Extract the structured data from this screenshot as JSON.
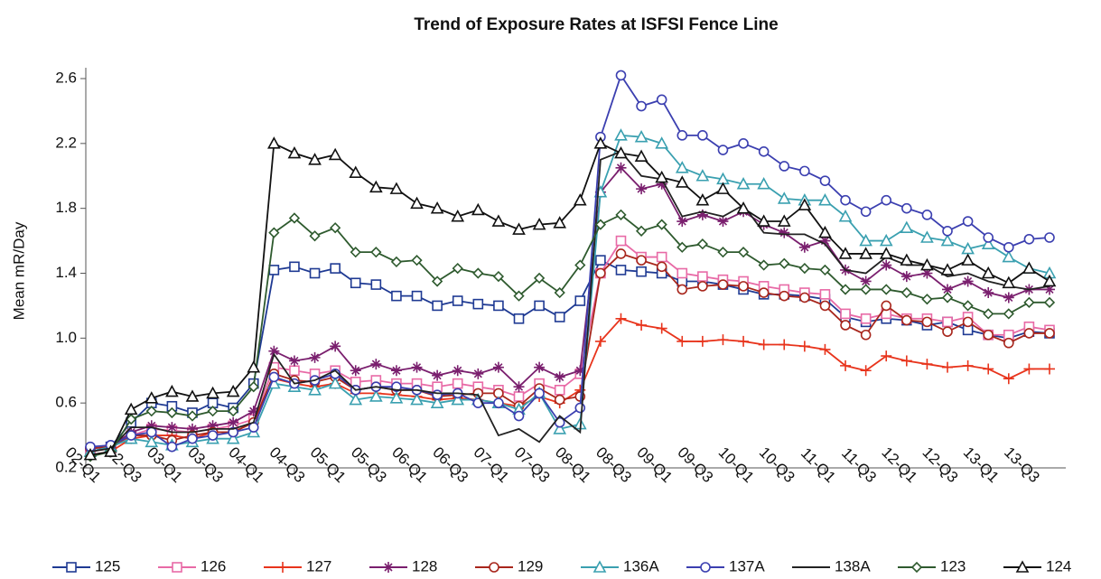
{
  "chart_data": {
    "type": "line",
    "title": "Trend of Exposure Rates at ISFSI  Fence Line",
    "y_label": "Mean mR/Day",
    "categories": [
      "02-Q1",
      null,
      "02-Q3",
      null,
      "03-Q1",
      null,
      "03-Q3",
      null,
      "04-Q1",
      null,
      "04-Q3",
      null,
      "05-Q1",
      null,
      "05-Q3",
      null,
      "06-Q1",
      null,
      "06-Q3",
      null,
      "07-Q1",
      null,
      "07-Q3",
      null,
      "08-Q1",
      null,
      "08-Q3",
      null,
      "09-Q1",
      null,
      "09-Q3",
      null,
      "10-Q1",
      null,
      "10-Q3",
      null,
      "11-Q1",
      null,
      "11-Q3",
      null,
      "12-Q1",
      null,
      "12-Q3",
      null,
      "13-Q1",
      null,
      "13-Q3",
      null
    ],
    "ylim": [
      0.2,
      2.6
    ],
    "yticks": [
      0.2,
      0.6,
      {
        "value": 1,
        "label": "1.0"
      },
      1.4,
      1.8,
      2.2,
      2.6
    ],
    "grid": false,
    "legend": "bottom",
    "series": [
      {
        "name": "125",
        "color": "#1f3a93",
        "marker": "square",
        "values": [
          0.3,
          0.33,
          0.48,
          0.6,
          0.58,
          0.54,
          0.6,
          0.57,
          0.72,
          1.42,
          1.44,
          1.4,
          1.43,
          1.34,
          1.33,
          1.26,
          1.26,
          1.2,
          1.23,
          1.21,
          1.2,
          1.12,
          1.2,
          1.13,
          1.23,
          1.48,
          1.42,
          1.41,
          1.4,
          1.35,
          1.35,
          1.33,
          1.3,
          1.27,
          1.27,
          1.26,
          1.24,
          1.13,
          1.1,
          1.12,
          1.11,
          1.08,
          1.1,
          1.05,
          1.02,
          1.0,
          1.04,
          1.03
        ]
      },
      {
        "name": "126",
        "color": "#e86aa6",
        "marker": "square",
        "values": [
          0.3,
          0.32,
          0.4,
          0.44,
          0.43,
          0.42,
          0.44,
          0.46,
          0.5,
          0.82,
          0.8,
          0.78,
          0.8,
          0.73,
          0.74,
          0.72,
          0.72,
          0.7,
          0.72,
          0.7,
          0.68,
          0.64,
          0.72,
          0.68,
          0.78,
          1.4,
          1.6,
          1.5,
          1.5,
          1.4,
          1.38,
          1.36,
          1.35,
          1.32,
          1.3,
          1.28,
          1.27,
          1.15,
          1.12,
          1.15,
          1.12,
          1.12,
          1.1,
          1.13,
          1.02,
          1.02,
          1.07,
          1.05
        ]
      },
      {
        "name": "127",
        "color": "#e8341c",
        "marker": "plus",
        "values": [
          0.28,
          0.3,
          0.38,
          0.4,
          0.4,
          0.38,
          0.42,
          0.42,
          0.48,
          0.75,
          0.72,
          0.7,
          0.72,
          0.66,
          0.66,
          0.65,
          0.64,
          0.62,
          0.63,
          0.62,
          0.6,
          0.58,
          0.64,
          0.6,
          0.68,
          0.98,
          1.12,
          1.08,
          1.06,
          0.98,
          0.98,
          0.99,
          0.98,
          0.96,
          0.96,
          0.95,
          0.93,
          0.83,
          0.8,
          0.89,
          0.86,
          0.84,
          0.82,
          0.83,
          0.81,
          0.75,
          0.81,
          0.81
        ]
      },
      {
        "name": "128",
        "color": "#7a1f6e",
        "marker": "star",
        "values": [
          0.32,
          0.33,
          0.42,
          0.46,
          0.45,
          0.44,
          0.46,
          0.48,
          0.55,
          0.92,
          0.86,
          0.88,
          0.95,
          0.8,
          0.84,
          0.8,
          0.82,
          0.77,
          0.8,
          0.78,
          0.82,
          0.7,
          0.82,
          0.76,
          0.8,
          1.9,
          2.05,
          1.92,
          1.95,
          1.72,
          1.76,
          1.72,
          1.78,
          1.7,
          1.65,
          1.56,
          1.6,
          1.42,
          1.35,
          1.45,
          1.38,
          1.4,
          1.3,
          1.35,
          1.28,
          1.25,
          1.3,
          1.3
        ]
      },
      {
        "name": "129",
        "color": "#a8261c",
        "marker": "circle",
        "values": [
          0.32,
          0.33,
          0.4,
          0.4,
          0.37,
          0.4,
          0.42,
          0.42,
          0.48,
          0.78,
          0.74,
          0.73,
          0.76,
          0.68,
          0.7,
          0.68,
          0.68,
          0.64,
          0.65,
          0.66,
          0.66,
          0.58,
          0.69,
          0.62,
          0.64,
          1.4,
          1.52,
          1.48,
          1.44,
          1.3,
          1.32,
          1.33,
          1.32,
          1.28,
          1.26,
          1.25,
          1.2,
          1.08,
          1.02,
          1.2,
          1.11,
          1.1,
          1.04,
          1.1,
          1.02,
          0.97,
          1.03,
          1.03
        ]
      },
      {
        "name": "136A",
        "color": "#3aa0b0",
        "marker": "triangle",
        "values": [
          0.3,
          0.33,
          0.38,
          0.36,
          0.34,
          0.36,
          0.38,
          0.38,
          0.42,
          0.72,
          0.7,
          0.68,
          0.72,
          0.62,
          0.64,
          0.63,
          0.62,
          0.6,
          0.62,
          0.62,
          0.6,
          0.56,
          0.66,
          0.44,
          0.47,
          1.9,
          2.25,
          2.24,
          2.2,
          2.05,
          2.0,
          1.98,
          1.95,
          1.95,
          1.86,
          1.85,
          1.85,
          1.75,
          1.6,
          1.6,
          1.68,
          1.62,
          1.6,
          1.55,
          1.58,
          1.5,
          1.43,
          1.4
        ]
      },
      {
        "name": "137A",
        "color": "#3b3fb0",
        "marker": "circle",
        "values": [
          0.33,
          0.34,
          0.4,
          0.42,
          0.33,
          0.38,
          0.4,
          0.42,
          0.45,
          0.76,
          0.72,
          0.74,
          0.78,
          0.68,
          0.7,
          0.7,
          0.68,
          0.65,
          0.66,
          0.6,
          0.6,
          0.52,
          0.66,
          0.48,
          0.57,
          2.24,
          2.62,
          2.43,
          2.47,
          2.25,
          2.25,
          2.16,
          2.2,
          2.15,
          2.06,
          2.03,
          1.97,
          1.85,
          1.78,
          1.85,
          1.8,
          1.76,
          1.66,
          1.72,
          1.62,
          1.56,
          1.61,
          1.62
        ]
      },
      {
        "name": "138A",
        "color": "#222222",
        "marker": "none",
        "values": [
          0.3,
          0.32,
          0.45,
          0.45,
          0.42,
          0.42,
          0.44,
          0.44,
          0.48,
          0.9,
          0.72,
          0.74,
          0.8,
          0.68,
          0.7,
          0.68,
          0.68,
          0.66,
          0.66,
          0.65,
          0.4,
          0.44,
          0.36,
          0.52,
          0.42,
          2.1,
          2.15,
          2.0,
          1.98,
          1.75,
          1.78,
          1.75,
          1.82,
          1.65,
          1.64,
          1.64,
          1.58,
          1.42,
          1.4,
          1.5,
          1.45,
          1.45,
          1.38,
          1.4,
          1.35,
          1.32,
          1.3,
          1.32
        ]
      },
      {
        "name": "123",
        "color": "#2e5a2e",
        "marker": "diamond",
        "values": [
          0.27,
          0.3,
          0.5,
          0.55,
          0.54,
          0.52,
          0.55,
          0.55,
          0.7,
          1.65,
          1.74,
          1.63,
          1.68,
          1.53,
          1.53,
          1.47,
          1.48,
          1.35,
          1.43,
          1.4,
          1.38,
          1.26,
          1.37,
          1.28,
          1.45,
          1.7,
          1.76,
          1.66,
          1.7,
          1.56,
          1.58,
          1.53,
          1.53,
          1.45,
          1.46,
          1.43,
          1.42,
          1.3,
          1.3,
          1.3,
          1.28,
          1.24,
          1.25,
          1.2,
          1.15,
          1.15,
          1.22,
          1.22
        ]
      },
      {
        "name": "124",
        "color": "#111111",
        "marker": "triangle",
        "values": [
          0.28,
          0.3,
          0.56,
          0.63,
          0.67,
          0.64,
          0.66,
          0.67,
          0.82,
          2.2,
          2.14,
          2.1,
          2.13,
          2.02,
          1.93,
          1.92,
          1.83,
          1.8,
          1.75,
          1.79,
          1.72,
          1.67,
          1.7,
          1.71,
          1.85,
          2.2,
          2.14,
          2.12,
          1.99,
          1.96,
          1.85,
          1.92,
          1.8,
          1.72,
          1.72,
          1.82,
          1.65,
          1.52,
          1.52,
          1.52,
          1.48,
          1.45,
          1.42,
          1.48,
          1.4,
          1.34,
          1.43,
          1.35
        ]
      }
    ]
  }
}
